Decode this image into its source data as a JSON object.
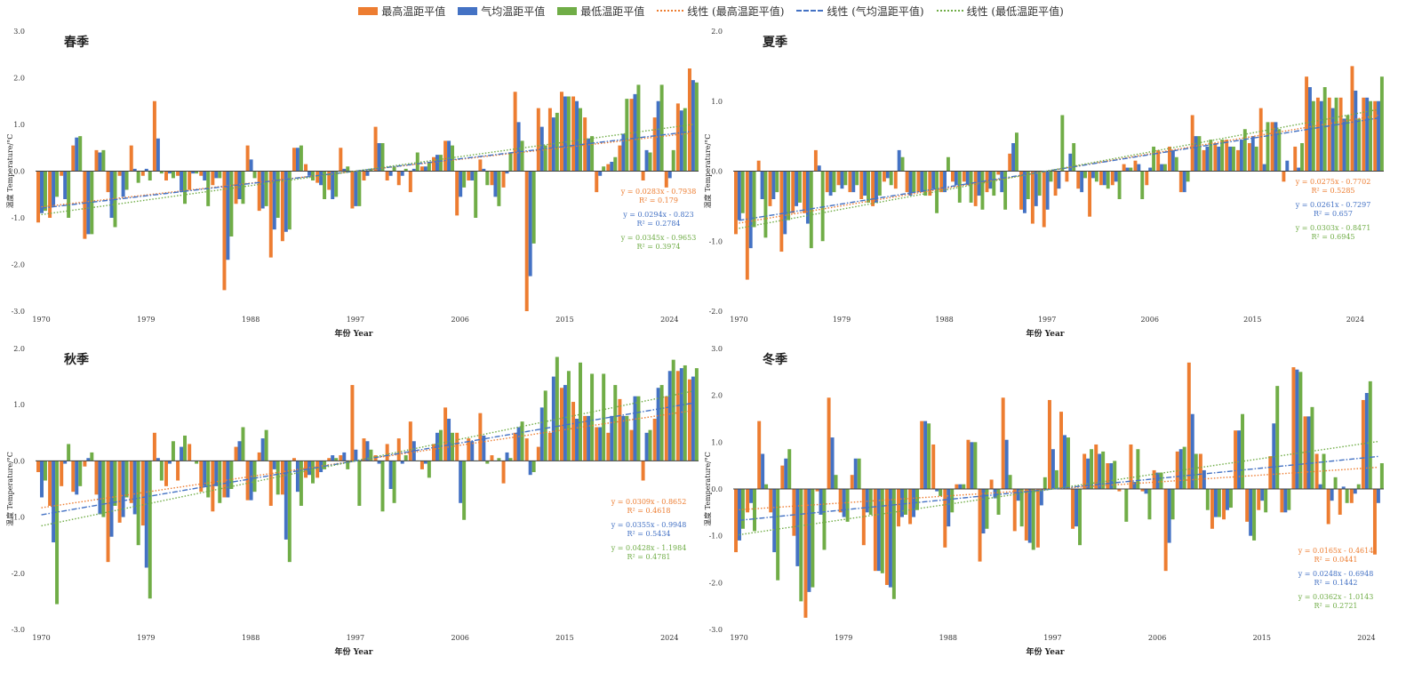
{
  "legend": {
    "items": [
      {
        "key": "max",
        "label": "最高温距平值",
        "kind": "bar",
        "color": "#ED7D31"
      },
      {
        "key": "avg",
        "label": "气均温距平值",
        "kind": "bar",
        "color": "#4472C4"
      },
      {
        "key": "min",
        "label": "最低温距平值",
        "kind": "bar",
        "color": "#70AD47"
      },
      {
        "key": "max_trend",
        "label": "线性 (最高温距平值)",
        "kind": "dotted",
        "color": "#ED7D31"
      },
      {
        "key": "avg_trend",
        "label": "线性 (气均温距平值)",
        "kind": "dashdot",
        "color": "#4472C4"
      },
      {
        "key": "min_trend",
        "label": "线性 (最低温距平值)",
        "kind": "dotted",
        "color": "#70AD47"
      }
    ]
  },
  "colors": {
    "max": "#ED7D31",
    "avg": "#4472C4",
    "min": "#70AD47",
    "axis": "#404040"
  },
  "chart_data": [
    {
      "type": "bar",
      "title": "春季",
      "xlabel": "年份 Year",
      "ylabel": "温度 Temperature/°C",
      "x_start": 1970,
      "x_ticks": [
        "1970",
        "1979",
        "1988",
        "1997",
        "2006",
        "2015",
        "2024"
      ],
      "y_ticks": [
        "3.0",
        "2.0",
        "1.0",
        "0.0",
        "-1.0",
        "-2.0",
        "-3.0"
      ],
      "ylim": [
        -3,
        3
      ],
      "series": [
        {
          "name": "最高温距平值",
          "key": "max",
          "values": [
            -1.1,
            -1.0,
            -0.1,
            0.55,
            -1.45,
            0.45,
            -0.45,
            -0.1,
            0.55,
            -0.1,
            1.5,
            -0.2,
            -0.1,
            -0.4,
            -0.1,
            -0.3,
            -2.55,
            -0.7,
            0.55,
            -0.85,
            -1.85,
            -1.5,
            0.5,
            0.15,
            -0.25,
            -0.4,
            0.5,
            -0.8,
            -0.2,
            0.95,
            -0.2,
            -0.3,
            -0.45,
            0.1,
            0.3,
            0.65,
            -0.95,
            -0.2,
            0.25,
            -0.3,
            -0.35,
            1.7,
            -3.0,
            1.35,
            1.35,
            1.7,
            1.6,
            1.15,
            -0.45,
            0.15,
            0.55,
            1.55,
            -0.2,
            1.15,
            -0.35,
            1.45,
            2.2
          ]
        },
        {
          "name": "气均温距平值",
          "key": "avg",
          "values": [
            -0.9,
            -0.75,
            -0.6,
            0.72,
            -1.35,
            0.4,
            -1.0,
            -0.55,
            0.05,
            0.05,
            0.7,
            -0.05,
            -0.45,
            -0.05,
            -0.2,
            -0.15,
            -1.9,
            -0.6,
            0.25,
            -0.8,
            -1.25,
            -1.3,
            0.5,
            -0.1,
            -0.3,
            -0.6,
            0.05,
            -0.75,
            -0.1,
            0.6,
            -0.1,
            -0.1,
            0.05,
            0.1,
            0.35,
            0.65,
            -0.55,
            -0.2,
            0.05,
            -0.55,
            -0.05,
            1.05,
            -2.25,
            0.95,
            1.15,
            1.6,
            1.5,
            0.7,
            -0.1,
            0.2,
            0.8,
            1.65,
            0.45,
            1.5,
            -0.15,
            1.3,
            1.95
          ]
        },
        {
          "name": "最低温距平值",
          "key": "min",
          "values": [
            -0.85,
            -0.55,
            -1.0,
            0.75,
            -1.35,
            0.45,
            -1.2,
            -0.4,
            -0.25,
            -0.2,
            -0.05,
            -0.15,
            -0.7,
            -0.05,
            -0.75,
            -0.15,
            -1.4,
            -0.7,
            -0.15,
            -0.75,
            -1.0,
            -1.25,
            0.55,
            -0.2,
            -0.6,
            -0.55,
            0.1,
            -0.75,
            0.05,
            0.6,
            0.1,
            0.05,
            0.4,
            0.2,
            0.35,
            0.55,
            -0.35,
            -1.0,
            -0.3,
            -0.75,
            0.4,
            0.65,
            -1.55,
            0.55,
            1.25,
            1.6,
            1.35,
            0.75,
            0.1,
            0.3,
            1.55,
            1.85,
            0.4,
            1.85,
            0.45,
            1.35,
            1.9
          ]
        }
      ],
      "trends": [
        {
          "key": "max",
          "slope": 0.0283,
          "intercept": -0.7938,
          "equation": "y = 0.0283x - 0.7938",
          "r2": "R² = 0.179"
        },
        {
          "key": "avg",
          "slope": 0.0294,
          "intercept": -0.823,
          "equation": "y = 0.0294x - 0.823",
          "r2": "R² = 0.2784"
        },
        {
          "key": "min",
          "slope": 0.0345,
          "intercept": -0.9653,
          "equation": "y = 0.0345x - 0.9653",
          "r2": "R² = 0.3974"
        }
      ]
    },
    {
      "type": "bar",
      "title": "夏季",
      "xlabel": "年份 Year",
      "ylabel": "温度 Temperature/°C",
      "x_start": 1970,
      "x_ticks": [
        "1970",
        "1979",
        "1988",
        "1997",
        "2006",
        "2015",
        "2024"
      ],
      "y_ticks": [
        "2.0",
        "1.0",
        "0.0",
        "-1.0",
        "-2.0"
      ],
      "ylim": [
        -2,
        2
      ],
      "series": [
        {
          "name": "最高温距平值",
          "key": "max",
          "values": [
            -0.9,
            -1.55,
            0.15,
            -0.5,
            -1.15,
            -0.6,
            -0.6,
            0.3,
            -0.3,
            -0.2,
            -0.3,
            -0.4,
            -0.5,
            -0.15,
            -0.25,
            -0.3,
            -0.3,
            -0.35,
            -0.3,
            -0.15,
            -0.15,
            -0.5,
            -0.3,
            -0.05,
            0.25,
            -0.55,
            -0.75,
            -0.8,
            -0.35,
            -0.15,
            -0.25,
            -0.65,
            -0.2,
            -0.2,
            0.1,
            0.15,
            -0.2,
            0.3,
            0.35,
            -0.3,
            0.8,
            0.3,
            0.4,
            0.45,
            0.3,
            0.4,
            0.9,
            0.7,
            -0.15,
            0.35,
            1.35,
            1.05,
            1.05,
            1.05,
            1.5,
            1.05,
            1.0
          ]
        },
        {
          "name": "气均温距平值",
          "key": "avg",
          "values": [
            -0.7,
            -1.1,
            -0.4,
            -0.4,
            -0.9,
            -0.5,
            -0.75,
            0.08,
            -0.35,
            -0.25,
            -0.3,
            -0.35,
            -0.45,
            -0.1,
            0.3,
            -0.35,
            -0.3,
            -0.25,
            -0.3,
            -0.2,
            -0.2,
            -0.35,
            -0.25,
            -0.3,
            0.4,
            -0.6,
            -0.5,
            -0.55,
            -0.25,
            0.25,
            -0.3,
            -0.1,
            -0.2,
            -0.15,
            0.05,
            0.1,
            0.05,
            0.1,
            0.3,
            -0.3,
            0.5,
            0.35,
            0.35,
            0.35,
            0.45,
            0.5,
            0.1,
            0.7,
            0.15,
            0.05,
            1.2,
            1.0,
            0.9,
            0.75,
            1.15,
            1.05,
            1.0
          ]
        },
        {
          "name": "最低温距平值",
          "key": "min",
          "values": [
            -0.6,
            -0.8,
            -0.95,
            -0.3,
            -0.7,
            -0.45,
            -1.1,
            -1.0,
            -0.3,
            -0.2,
            -0.2,
            -0.45,
            -0.35,
            -0.2,
            0.2,
            -0.3,
            -0.35,
            -0.6,
            0.2,
            -0.45,
            -0.45,
            -0.55,
            -0.35,
            -0.55,
            0.55,
            -0.4,
            -0.35,
            -0.15,
            0.8,
            0.4,
            -0.1,
            -0.15,
            -0.25,
            -0.4,
            0.05,
            -0.4,
            0.35,
            0.1,
            0.2,
            -0.15,
            0.5,
            0.45,
            0.45,
            0.35,
            0.6,
            0.35,
            0.7,
            0.6,
            0.0,
            0.4,
            1.0,
            1.2,
            1.05,
            0.8,
            0.75,
            1.0,
            1.35
          ]
        }
      ],
      "trends": [
        {
          "key": "max",
          "slope": 0.0275,
          "intercept": -0.7702,
          "equation": "y = 0.0275x - 0.7702",
          "r2": "R² = 0.5285"
        },
        {
          "key": "avg",
          "slope": 0.0261,
          "intercept": -0.7297,
          "equation": "y = 0.0261x - 0.7297",
          "r2": "R² = 0.657"
        },
        {
          "key": "min",
          "slope": 0.0303,
          "intercept": -0.8471,
          "equation": "y = 0.0303x - 0.8471",
          "r2": "R² = 0.6945"
        }
      ]
    },
    {
      "type": "bar",
      "title": "秋季",
      "xlabel": "年份 Year",
      "ylabel": "温度 Temperature/°C",
      "x_start": 1970,
      "x_ticks": [
        "1970",
        "1979",
        "1988",
        "1997",
        "2006",
        "2015",
        "2024"
      ],
      "y_ticks": [
        "2.0",
        "1.0",
        "0.0",
        "-1.0",
        "-2.0",
        "-3.0"
      ],
      "ylim": [
        -3,
        2
      ],
      "series": [
        {
          "name": "最高温距平值",
          "key": "max",
          "values": [
            -0.2,
            -0.8,
            -0.45,
            -0.55,
            -0.1,
            -0.6,
            -1.8,
            -1.1,
            -0.75,
            -1.15,
            0.5,
            -0.45,
            -0.35,
            0.3,
            -0.55,
            -0.9,
            -0.65,
            0.25,
            -0.7,
            0.15,
            -0.8,
            -0.6,
            0.05,
            -0.3,
            -0.3,
            0.05,
            0.1,
            1.35,
            0.4,
            0.1,
            0.3,
            0.4,
            0.7,
            -0.15,
            0.3,
            0.95,
            0.5,
            0.4,
            0.85,
            0.1,
            -0.4,
            0.5,
            0.4,
            0.25,
            0.5,
            1.3,
            1.05,
            0.8,
            0.6,
            0.5,
            1.1,
            0.55,
            -0.35,
            0.75,
            1.15,
            1.6,
            1.45
          ]
        },
        {
          "name": "气均温距平值",
          "key": "avg",
          "values": [
            -0.65,
            -1.45,
            -0.05,
            -0.6,
            0.05,
            -0.95,
            -1.35,
            -1.0,
            -0.95,
            -1.9,
            0.05,
            -0.05,
            0.25,
            0.0,
            -0.45,
            -0.45,
            -0.65,
            0.35,
            -0.7,
            0.4,
            -0.15,
            -1.4,
            -0.55,
            -0.25,
            -0.2,
            0.1,
            0.15,
            0.2,
            0.35,
            -0.05,
            -0.5,
            -0.05,
            0.35,
            -0.05,
            0.5,
            0.75,
            -0.75,
            0.35,
            0.45,
            0.0,
            0.15,
            0.6,
            -0.25,
            0.95,
            1.5,
            1.35,
            0.75,
            0.8,
            0.6,
            0.8,
            0.8,
            1.15,
            0.5,
            1.3,
            1.6,
            1.65,
            1.5
          ]
        },
        {
          "name": "最低温距平值",
          "key": "min",
          "values": [
            -0.35,
            -2.55,
            0.3,
            -0.45,
            0.15,
            -1.0,
            -0.8,
            -0.65,
            -1.5,
            -2.45,
            -0.35,
            0.35,
            0.45,
            -0.05,
            -0.65,
            -0.75,
            -0.5,
            0.6,
            -0.55,
            0.55,
            -0.6,
            -1.8,
            -0.8,
            -0.4,
            -0.15,
            0.05,
            -0.15,
            -0.8,
            0.2,
            -0.9,
            -0.75,
            0.1,
            0.0,
            -0.3,
            0.55,
            0.5,
            -1.05,
            0.0,
            -0.05,
            0.05,
            0.05,
            0.7,
            -0.2,
            1.25,
            1.85,
            1.6,
            1.75,
            1.55,
            1.55,
            1.35,
            0.8,
            1.15,
            0.55,
            1.35,
            1.8,
            1.7,
            1.65
          ]
        }
      ],
      "trends": [
        {
          "key": "max",
          "slope": 0.0309,
          "intercept": -0.8652,
          "equation": "y = 0.0309x - 0.8652",
          "r2": "R² = 0.4618"
        },
        {
          "key": "avg",
          "slope": 0.0355,
          "intercept": -0.9948,
          "equation": "y = 0.0355x - 0.9948",
          "r2": "R² = 0.5434"
        },
        {
          "key": "min",
          "slope": 0.0428,
          "intercept": -1.1984,
          "equation": "y = 0.0428x - 1.1984",
          "r2": "R² = 0.4781"
        }
      ]
    },
    {
      "type": "bar",
      "title": "冬季",
      "xlabel": "年份 Year",
      "ylabel": "温度 Temperature/°C",
      "x_start": 1970,
      "x_ticks": [
        "1970",
        "1979",
        "1988",
        "1997",
        "2006",
        "2015",
        "2024"
      ],
      "y_ticks": [
        "3.0",
        "2.0",
        "1.0",
        "0.0",
        "-1.0",
        "-2.0",
        "-3.0"
      ],
      "ylim": [
        -3,
        3
      ],
      "series": [
        {
          "name": "最高温距平值",
          "key": "max",
          "values": [
            -1.35,
            -0.5,
            1.45,
            -0.5,
            0.5,
            -1.0,
            -2.75,
            -0.05,
            1.95,
            -0.5,
            0.3,
            -1.2,
            -1.75,
            -2.05,
            -0.8,
            -0.75,
            1.45,
            0.95,
            -1.25,
            0.1,
            1.05,
            -1.55,
            0.2,
            1.95,
            -0.9,
            -1.1,
            -1.25,
            1.9,
            1.65,
            -0.85,
            0.75,
            0.95,
            0.55,
            -0.05,
            0.95,
            -0.05,
            0.4,
            -1.75,
            0.8,
            2.7,
            0.75,
            -0.85,
            -0.65,
            1.25,
            -0.7,
            -0.45,
            0.7,
            -0.5,
            2.6,
            1.55,
            0.75,
            -0.75,
            -0.55,
            -0.3,
            1.9,
            -1.4
          ]
        },
        {
          "name": "气均温距平值",
          "key": "avg",
          "values": [
            -1.1,
            -0.3,
            0.75,
            -1.35,
            0.65,
            -1.65,
            -2.2,
            -0.55,
            1.1,
            -0.6,
            0.65,
            -0.5,
            -1.75,
            -2.1,
            -0.6,
            -0.6,
            1.45,
            -0.05,
            -0.8,
            0.1,
            1.0,
            -0.95,
            -0.2,
            1.05,
            -0.25,
            -1.15,
            -0.35,
            0.85,
            1.15,
            -0.8,
            0.65,
            0.75,
            0.55,
            0.0,
            0.15,
            -0.1,
            0.35,
            -1.15,
            0.85,
            1.6,
            0.4,
            -0.6,
            -0.45,
            1.25,
            -1.0,
            -0.25,
            1.4,
            -0.5,
            2.55,
            1.55,
            0.1,
            -0.25,
            0.05,
            -0.1,
            2.05,
            -0.3
          ]
        },
        {
          "name": "最低温距平值",
          "key": "min",
          "values": [
            -0.85,
            -0.9,
            0.1,
            -1.95,
            0.85,
            -2.4,
            -2.1,
            -1.3,
            0.3,
            -0.7,
            0.65,
            -0.55,
            -1.8,
            -2.35,
            -0.55,
            -0.45,
            1.4,
            -0.15,
            -0.5,
            0.1,
            1.0,
            -0.85,
            -0.55,
            0.3,
            -0.8,
            -1.3,
            0.25,
            0.4,
            1.1,
            -1.2,
            0.85,
            0.8,
            0.6,
            -0.7,
            0.85,
            -0.65,
            0.35,
            -0.65,
            0.9,
            0.75,
            -0.45,
            -0.6,
            -0.4,
            1.6,
            -1.1,
            -0.5,
            2.2,
            -0.45,
            2.5,
            1.75,
            0.75,
            0.25,
            -0.3,
            0.1,
            2.3,
            0.55
          ]
        }
      ],
      "trends": [
        {
          "key": "max",
          "slope": 0.0165,
          "intercept": -0.4614,
          "equation": "y = 0.0165x - 0.4614",
          "r2": "R² = 0.0441"
        },
        {
          "key": "avg",
          "slope": 0.0248,
          "intercept": -0.6948,
          "equation": "y = 0.0248x - 0.6948",
          "r2": "R² = 0.1442"
        },
        {
          "key": "min",
          "slope": 0.0362,
          "intercept": -1.0143,
          "equation": "y = 0.0362x - 1.0143",
          "r2": "R² = 0.2721"
        }
      ]
    }
  ]
}
